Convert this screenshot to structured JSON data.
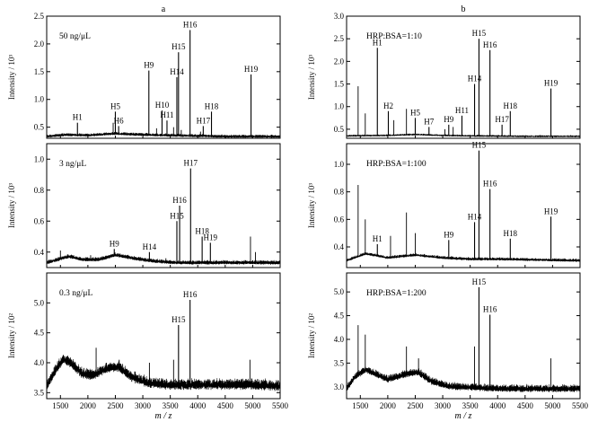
{
  "panel_labels": [
    "a",
    "b"
  ],
  "x_axis_label": "m / z",
  "chart_data": [
    {
      "type": "line",
      "panel": "a",
      "condition": "50 ng/μL",
      "xlabel": "m / z",
      "ylabel": "Intensity / 10³",
      "xlim": [
        1250,
        5500
      ],
      "ylim": [
        0.3,
        2.5
      ],
      "xticks": [
        1500,
        2000,
        2500,
        3000,
        3500,
        4000,
        4500,
        5000,
        5500
      ],
      "yticks": [
        0.5,
        1.0,
        1.5,
        2.0,
        2.5
      ],
      "baseline": [
        [
          1250,
          0.33
        ],
        [
          1600,
          0.36
        ],
        [
          2000,
          0.35
        ],
        [
          2500,
          0.38
        ],
        [
          3000,
          0.36
        ],
        [
          3500,
          0.35
        ],
        [
          4000,
          0.34
        ],
        [
          4500,
          0.33
        ],
        [
          5000,
          0.33
        ],
        [
          5500,
          0.33
        ]
      ],
      "noise": 0.025,
      "peaks": [
        {
          "label": "H1",
          "x": 1810,
          "y": 0.58
        },
        {
          "label": "H5",
          "x": 2500,
          "y": 0.78
        },
        {
          "label": "H6",
          "x": 2560,
          "y": 0.52
        },
        {
          "label": "H9",
          "x": 3110,
          "y": 1.52
        },
        {
          "label": "H10",
          "x": 3350,
          "y": 0.8
        },
        {
          "label": "H11",
          "x": 3440,
          "y": 0.62
        },
        {
          "label": "H14",
          "x": 3620,
          "y": 1.4
        },
        {
          "label": "H15",
          "x": 3650,
          "y": 1.85
        },
        {
          "label": "H16",
          "x": 3860,
          "y": 2.25
        },
        {
          "label": "H17",
          "x": 4100,
          "y": 0.52
        },
        {
          "label": "H18",
          "x": 4250,
          "y": 0.78
        },
        {
          "label": "H19",
          "x": 4970,
          "y": 1.45
        }
      ],
      "minor_peaks": [
        {
          "x": 2460,
          "y": 0.58
        },
        {
          "x": 3250,
          "y": 0.48
        },
        {
          "x": 3560,
          "y": 0.5
        },
        {
          "x": 3700,
          "y": 0.45
        },
        {
          "x": 4050,
          "y": 0.42
        }
      ]
    },
    {
      "type": "line",
      "panel": "a",
      "condition": "3 ng/μL",
      "xlabel": "m / z",
      "ylabel": "Intensity / 10³",
      "xlim": [
        1250,
        5500
      ],
      "ylim": [
        0.3,
        1.1
      ],
      "xticks": [
        1500,
        2000,
        2500,
        3000,
        3500,
        4000,
        4500,
        5000,
        5500
      ],
      "yticks": [
        0.4,
        0.6,
        0.8,
        1.0
      ],
      "baseline": [
        [
          1250,
          0.33
        ],
        [
          1450,
          0.35
        ],
        [
          1650,
          0.37
        ],
        [
          1900,
          0.35
        ],
        [
          2200,
          0.35
        ],
        [
          2500,
          0.38
        ],
        [
          2800,
          0.36
        ],
        [
          3200,
          0.34
        ],
        [
          3600,
          0.33
        ],
        [
          4200,
          0.33
        ],
        [
          5000,
          0.33
        ],
        [
          5500,
          0.33
        ]
      ],
      "noise": 0.012,
      "peaks": [
        {
          "label": "H9",
          "x": 2480,
          "y": 0.42
        },
        {
          "label": "H14",
          "x": 3120,
          "y": 0.4
        },
        {
          "label": "H15",
          "x": 3620,
          "y": 0.6
        },
        {
          "label": "H16",
          "x": 3670,
          "y": 0.7
        },
        {
          "label": "H17",
          "x": 3870,
          "y": 0.94
        },
        {
          "label": "H18",
          "x": 4080,
          "y": 0.5
        },
        {
          "label": "H19",
          "x": 4230,
          "y": 0.46
        }
      ],
      "minor_peaks": [
        {
          "x": 1500,
          "y": 0.41
        },
        {
          "x": 2050,
          "y": 0.38
        },
        {
          "x": 3420,
          "y": 0.36
        },
        {
          "x": 4960,
          "y": 0.5
        },
        {
          "x": 5050,
          "y": 0.4
        }
      ]
    },
    {
      "type": "line",
      "panel": "a",
      "condition": "0.3 ng/μL",
      "xlabel": "m / z",
      "ylabel": "Intensity / 10²",
      "xlim": [
        1250,
        5500
      ],
      "ylim": [
        3.4,
        5.5
      ],
      "xticks": [
        1500,
        2000,
        2500,
        3000,
        3500,
        4000,
        4500,
        5000,
        5500
      ],
      "yticks": [
        3.5,
        4.0,
        4.5,
        5.0
      ],
      "baseline": [
        [
          1250,
          3.6
        ],
        [
          1400,
          3.85
        ],
        [
          1550,
          4.05
        ],
        [
          1700,
          3.98
        ],
        [
          1900,
          3.8
        ],
        [
          2100,
          3.78
        ],
        [
          2350,
          3.9
        ],
        [
          2550,
          3.92
        ],
        [
          2800,
          3.75
        ],
        [
          3100,
          3.65
        ],
        [
          3500,
          3.62
        ],
        [
          4000,
          3.62
        ],
        [
          5000,
          3.62
        ],
        [
          5500,
          3.6
        ]
      ],
      "noise": 0.08,
      "peaks": [
        {
          "label": "H15",
          "x": 3650,
          "y": 4.63
        },
        {
          "label": "H16",
          "x": 3860,
          "y": 5.05
        }
      ],
      "minor_peaks": [
        {
          "x": 2150,
          "y": 4.25
        },
        {
          "x": 2570,
          "y": 4.05
        },
        {
          "x": 3120,
          "y": 4.0
        },
        {
          "x": 3560,
          "y": 4.05
        },
        {
          "x": 4950,
          "y": 4.05
        }
      ]
    },
    {
      "type": "line",
      "panel": "b",
      "condition": "HRP:BSA=1:10",
      "xlabel": "m / z",
      "ylabel": "Intensity / 10³",
      "xlim": [
        1250,
        5500
      ],
      "ylim": [
        0.3,
        3.0
      ],
      "xticks": [
        1500,
        2000,
        2500,
        3000,
        3500,
        4000,
        4500,
        5000,
        5500
      ],
      "yticks": [
        0.5,
        1.0,
        1.5,
        2.0,
        2.5,
        3.0
      ],
      "baseline": [
        [
          1250,
          0.35
        ],
        [
          2000,
          0.36
        ],
        [
          2500,
          0.38
        ],
        [
          3000,
          0.36
        ],
        [
          3500,
          0.35
        ],
        [
          4500,
          0.34
        ],
        [
          5500,
          0.34
        ]
      ],
      "noise": 0.02,
      "peaks": [
        {
          "label": "H1",
          "x": 1810,
          "y": 2.3
        },
        {
          "label": "H2",
          "x": 2010,
          "y": 0.9
        },
        {
          "label": "H5",
          "x": 2500,
          "y": 0.75
        },
        {
          "label": "H7",
          "x": 2750,
          "y": 0.55
        },
        {
          "label": "H9",
          "x": 3110,
          "y": 0.6
        },
        {
          "label": "H11",
          "x": 3350,
          "y": 0.8
        },
        {
          "label": "H14",
          "x": 3580,
          "y": 1.5
        },
        {
          "label": "H15",
          "x": 3660,
          "y": 2.5
        },
        {
          "label": "H16",
          "x": 3860,
          "y": 2.25
        },
        {
          "label": "H17",
          "x": 4080,
          "y": 0.6
        },
        {
          "label": "H18",
          "x": 4230,
          "y": 0.9
        },
        {
          "label": "H19",
          "x": 4970,
          "y": 1.4
        }
      ],
      "minor_peaks": [
        {
          "x": 1460,
          "y": 1.45
        },
        {
          "x": 1590,
          "y": 0.85
        },
        {
          "x": 2110,
          "y": 0.7
        },
        {
          "x": 2340,
          "y": 0.95
        },
        {
          "x": 3040,
          "y": 0.5
        },
        {
          "x": 3190,
          "y": 0.55
        }
      ]
    },
    {
      "type": "line",
      "panel": "b",
      "condition": "HRP:BSA=1:100",
      "xlabel": "m / z",
      "ylabel": "Intensity / 10³",
      "xlim": [
        1250,
        5500
      ],
      "ylim": [
        0.25,
        1.15
      ],
      "xticks": [
        1500,
        2000,
        2500,
        3000,
        3500,
        4000,
        4500,
        5000,
        5500
      ],
      "yticks": [
        0.4,
        0.6,
        0.8,
        1.0
      ],
      "baseline": [
        [
          1250,
          0.3
        ],
        [
          1600,
          0.35
        ],
        [
          2000,
          0.32
        ],
        [
          2500,
          0.34
        ],
        [
          3000,
          0.32
        ],
        [
          3500,
          0.31
        ],
        [
          4000,
          0.31
        ],
        [
          5500,
          0.3
        ]
      ],
      "noise": 0.01,
      "peaks": [
        {
          "label": "H1",
          "x": 1810,
          "y": 0.42
        },
        {
          "label": "H9",
          "x": 3110,
          "y": 0.45
        },
        {
          "label": "H14",
          "x": 3580,
          "y": 0.58
        },
        {
          "label": "H15",
          "x": 3660,
          "y": 1.1
        },
        {
          "label": "H16",
          "x": 3860,
          "y": 0.82
        },
        {
          "label": "H18",
          "x": 4230,
          "y": 0.46
        },
        {
          "label": "H19",
          "x": 4970,
          "y": 0.62
        }
      ],
      "minor_peaks": [
        {
          "x": 1460,
          "y": 0.85
        },
        {
          "x": 1590,
          "y": 0.6
        },
        {
          "x": 2340,
          "y": 0.65
        },
        {
          "x": 2500,
          "y": 0.5
        },
        {
          "x": 2050,
          "y": 0.48
        }
      ]
    },
    {
      "type": "line",
      "panel": "b",
      "condition": "HRP:BSA=1:200",
      "xlabel": "m / z",
      "ylabel": "Intensity / 10²",
      "xlim": [
        1250,
        5500
      ],
      "ylim": [
        2.75,
        5.4
      ],
      "xticks": [
        1500,
        2000,
        2500,
        3000,
        3500,
        4000,
        4500,
        5000,
        5500
      ],
      "yticks": [
        3.0,
        3.5,
        4.0,
        4.5,
        5.0
      ],
      "baseline": [
        [
          1250,
          2.95
        ],
        [
          1400,
          3.2
        ],
        [
          1600,
          3.35
        ],
        [
          1800,
          3.25
        ],
        [
          2000,
          3.15
        ],
        [
          2300,
          3.25
        ],
        [
          2550,
          3.3
        ],
        [
          2800,
          3.1
        ],
        [
          3100,
          3.0
        ],
        [
          3500,
          2.98
        ],
        [
          4000,
          2.95
        ],
        [
          5500,
          2.95
        ]
      ],
      "noise": 0.07,
      "peaks": [
        {
          "label": "H15",
          "x": 3660,
          "y": 5.1
        },
        {
          "label": "H16",
          "x": 3860,
          "y": 4.52
        }
      ],
      "minor_peaks": [
        {
          "x": 1460,
          "y": 4.3
        },
        {
          "x": 1590,
          "y": 4.1
        },
        {
          "x": 2340,
          "y": 3.85
        },
        {
          "x": 2560,
          "y": 3.6
        },
        {
          "x": 3580,
          "y": 3.85
        },
        {
          "x": 4970,
          "y": 3.6
        }
      ]
    }
  ]
}
